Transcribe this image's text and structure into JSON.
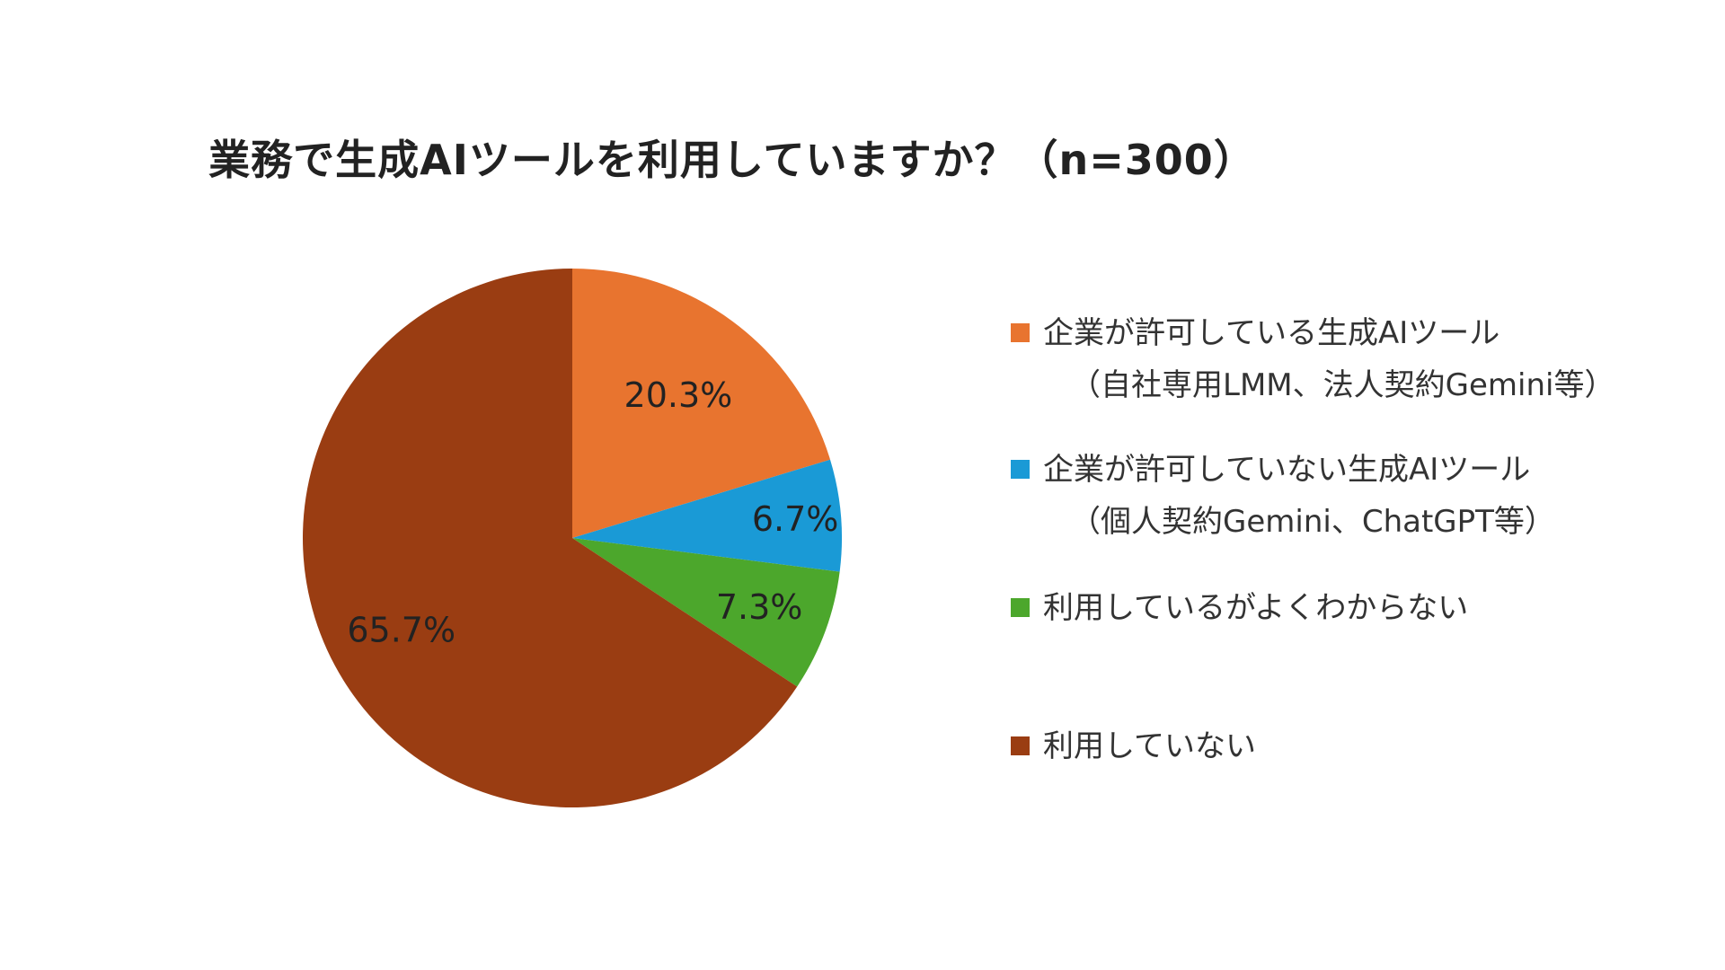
{
  "chart_data": {
    "type": "pie",
    "title": "業務で生成AIツールを利用していますか？（n=300）",
    "slices": [
      {
        "label": "企業が許可している生成AIツール",
        "sublabel": "（自社専用LMM、法人契約Gemini等）",
        "value": 20.3,
        "display": "20.3%",
        "color": "#E8742F"
      },
      {
        "label": "企業が許可していない生成AIツール",
        "sublabel": "（個人契約Gemini、ChatGPT等）",
        "value": 6.7,
        "display": "6.7%",
        "color": "#1A9AD6"
      },
      {
        "label": "利用しているがよくわからない",
        "sublabel": "",
        "value": 7.3,
        "display": "7.3%",
        "color": "#4CA72C"
      },
      {
        "label": "利用していない",
        "sublabel": "",
        "value": 65.7,
        "display": "65.7%",
        "color": "#9A3D12"
      }
    ],
    "legend_position": "right",
    "start_angle": "12 o'clock",
    "direction": "clockwise"
  }
}
